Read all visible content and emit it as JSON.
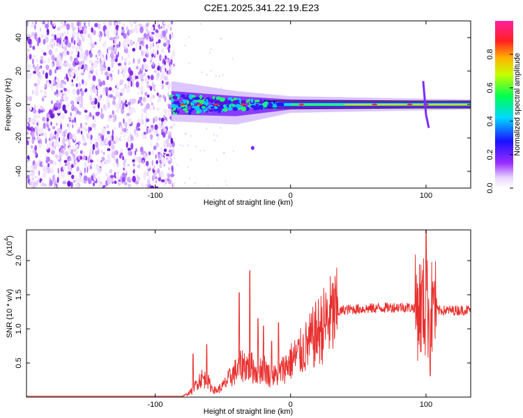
{
  "title": "C2E1.2025.341.22.19.E23",
  "chart_data": [
    {
      "type": "heatmap",
      "name": "spectrogram",
      "xlabel": "Height of straight line (km)",
      "ylabel": "Frequency (Hz)",
      "xlim": [
        -195,
        133
      ],
      "ylim": [
        -50,
        50
      ],
      "xticks": [
        -100,
        0,
        100
      ],
      "yticks": [
        -40,
        -20,
        0,
        20,
        40
      ],
      "grid": false,
      "colorbar": {
        "label": "Normalized spectral amplitude",
        "range": [
          0,
          1
        ],
        "ticks": [
          0.0,
          0.2,
          0.4,
          0.6,
          0.8
        ]
      },
      "features": {
        "noise_region_x": [
          -195,
          -86
        ],
        "tone_freq_hz": 0,
        "tone_start_x": -88,
        "strong_peaks_x": [
          -80,
          -67,
          -55,
          -35,
          8,
          62,
          88,
          100
        ],
        "spike_x": 100,
        "isolated_blob": {
          "x": -28,
          "y": -26
        }
      }
    },
    {
      "type": "line",
      "name": "snr",
      "xlabel": "Height of straight line (km)",
      "ylabel": "SNR (10 * v/v)",
      "yscale_label": "(x10",
      "yscale_exp": "4",
      "xlim": [
        -195,
        133
      ],
      "ylim": [
        0,
        24500
      ],
      "xticks": [
        -100,
        0,
        100
      ],
      "yticks": [
        {
          "value": 5000,
          "label": "0.5"
        },
        {
          "value": 10000,
          "label": "1.0"
        },
        {
          "value": 15000,
          "label": "1.5"
        },
        {
          "value": 20000,
          "label": "2.0"
        }
      ],
      "color": "#e8302e",
      "profile": [
        [
          -195,
          120
        ],
        [
          -80,
          120
        ],
        [
          -77,
          350
        ],
        [
          -72,
          1000
        ],
        [
          -69,
          2200
        ],
        [
          -66,
          2800
        ],
        [
          -62,
          2500
        ],
        [
          -58,
          1300
        ],
        [
          -55,
          900
        ],
        [
          -50,
          1600
        ],
        [
          -45,
          2800
        ],
        [
          -42,
          3500
        ],
        [
          -38,
          4200
        ],
        [
          -35,
          4800
        ],
        [
          -30,
          4500
        ],
        [
          -25,
          3800
        ],
        [
          -20,
          4300
        ],
        [
          -15,
          3000
        ],
        [
          -10,
          3200
        ],
        [
          -5,
          4200
        ],
        [
          0,
          5200
        ],
        [
          5,
          6100
        ],
        [
          10,
          7000
        ],
        [
          15,
          8200
        ],
        [
          20,
          9500
        ],
        [
          25,
          10700
        ],
        [
          30,
          11800
        ],
        [
          35,
          12400
        ],
        [
          40,
          12800
        ],
        [
          50,
          12900
        ],
        [
          60,
          13000
        ],
        [
          70,
          13100
        ],
        [
          80,
          13200
        ],
        [
          90,
          13100
        ],
        [
          95,
          13200
        ],
        [
          100,
          13000
        ],
        [
          105,
          12700
        ],
        [
          110,
          12700
        ],
        [
          120,
          12700
        ],
        [
          133,
          12800
        ]
      ],
      "spikes": [
        {
          "x": -72,
          "value": 6300
        },
        {
          "x": -62,
          "value": 7700
        },
        {
          "x": -38,
          "value": 15300
        },
        {
          "x": -30,
          "value": 18500
        },
        {
          "x": -24,
          "value": 11500
        },
        {
          "x": -20,
          "value": 10400
        },
        {
          "x": -14,
          "value": 8200
        },
        {
          "x": -9,
          "value": 10900
        },
        {
          "x": 100,
          "value": 24500
        },
        {
          "x": 97,
          "value": 17000
        },
        {
          "x": 103,
          "value": 3100
        },
        {
          "x": 106,
          "value": 16000
        }
      ]
    }
  ]
}
